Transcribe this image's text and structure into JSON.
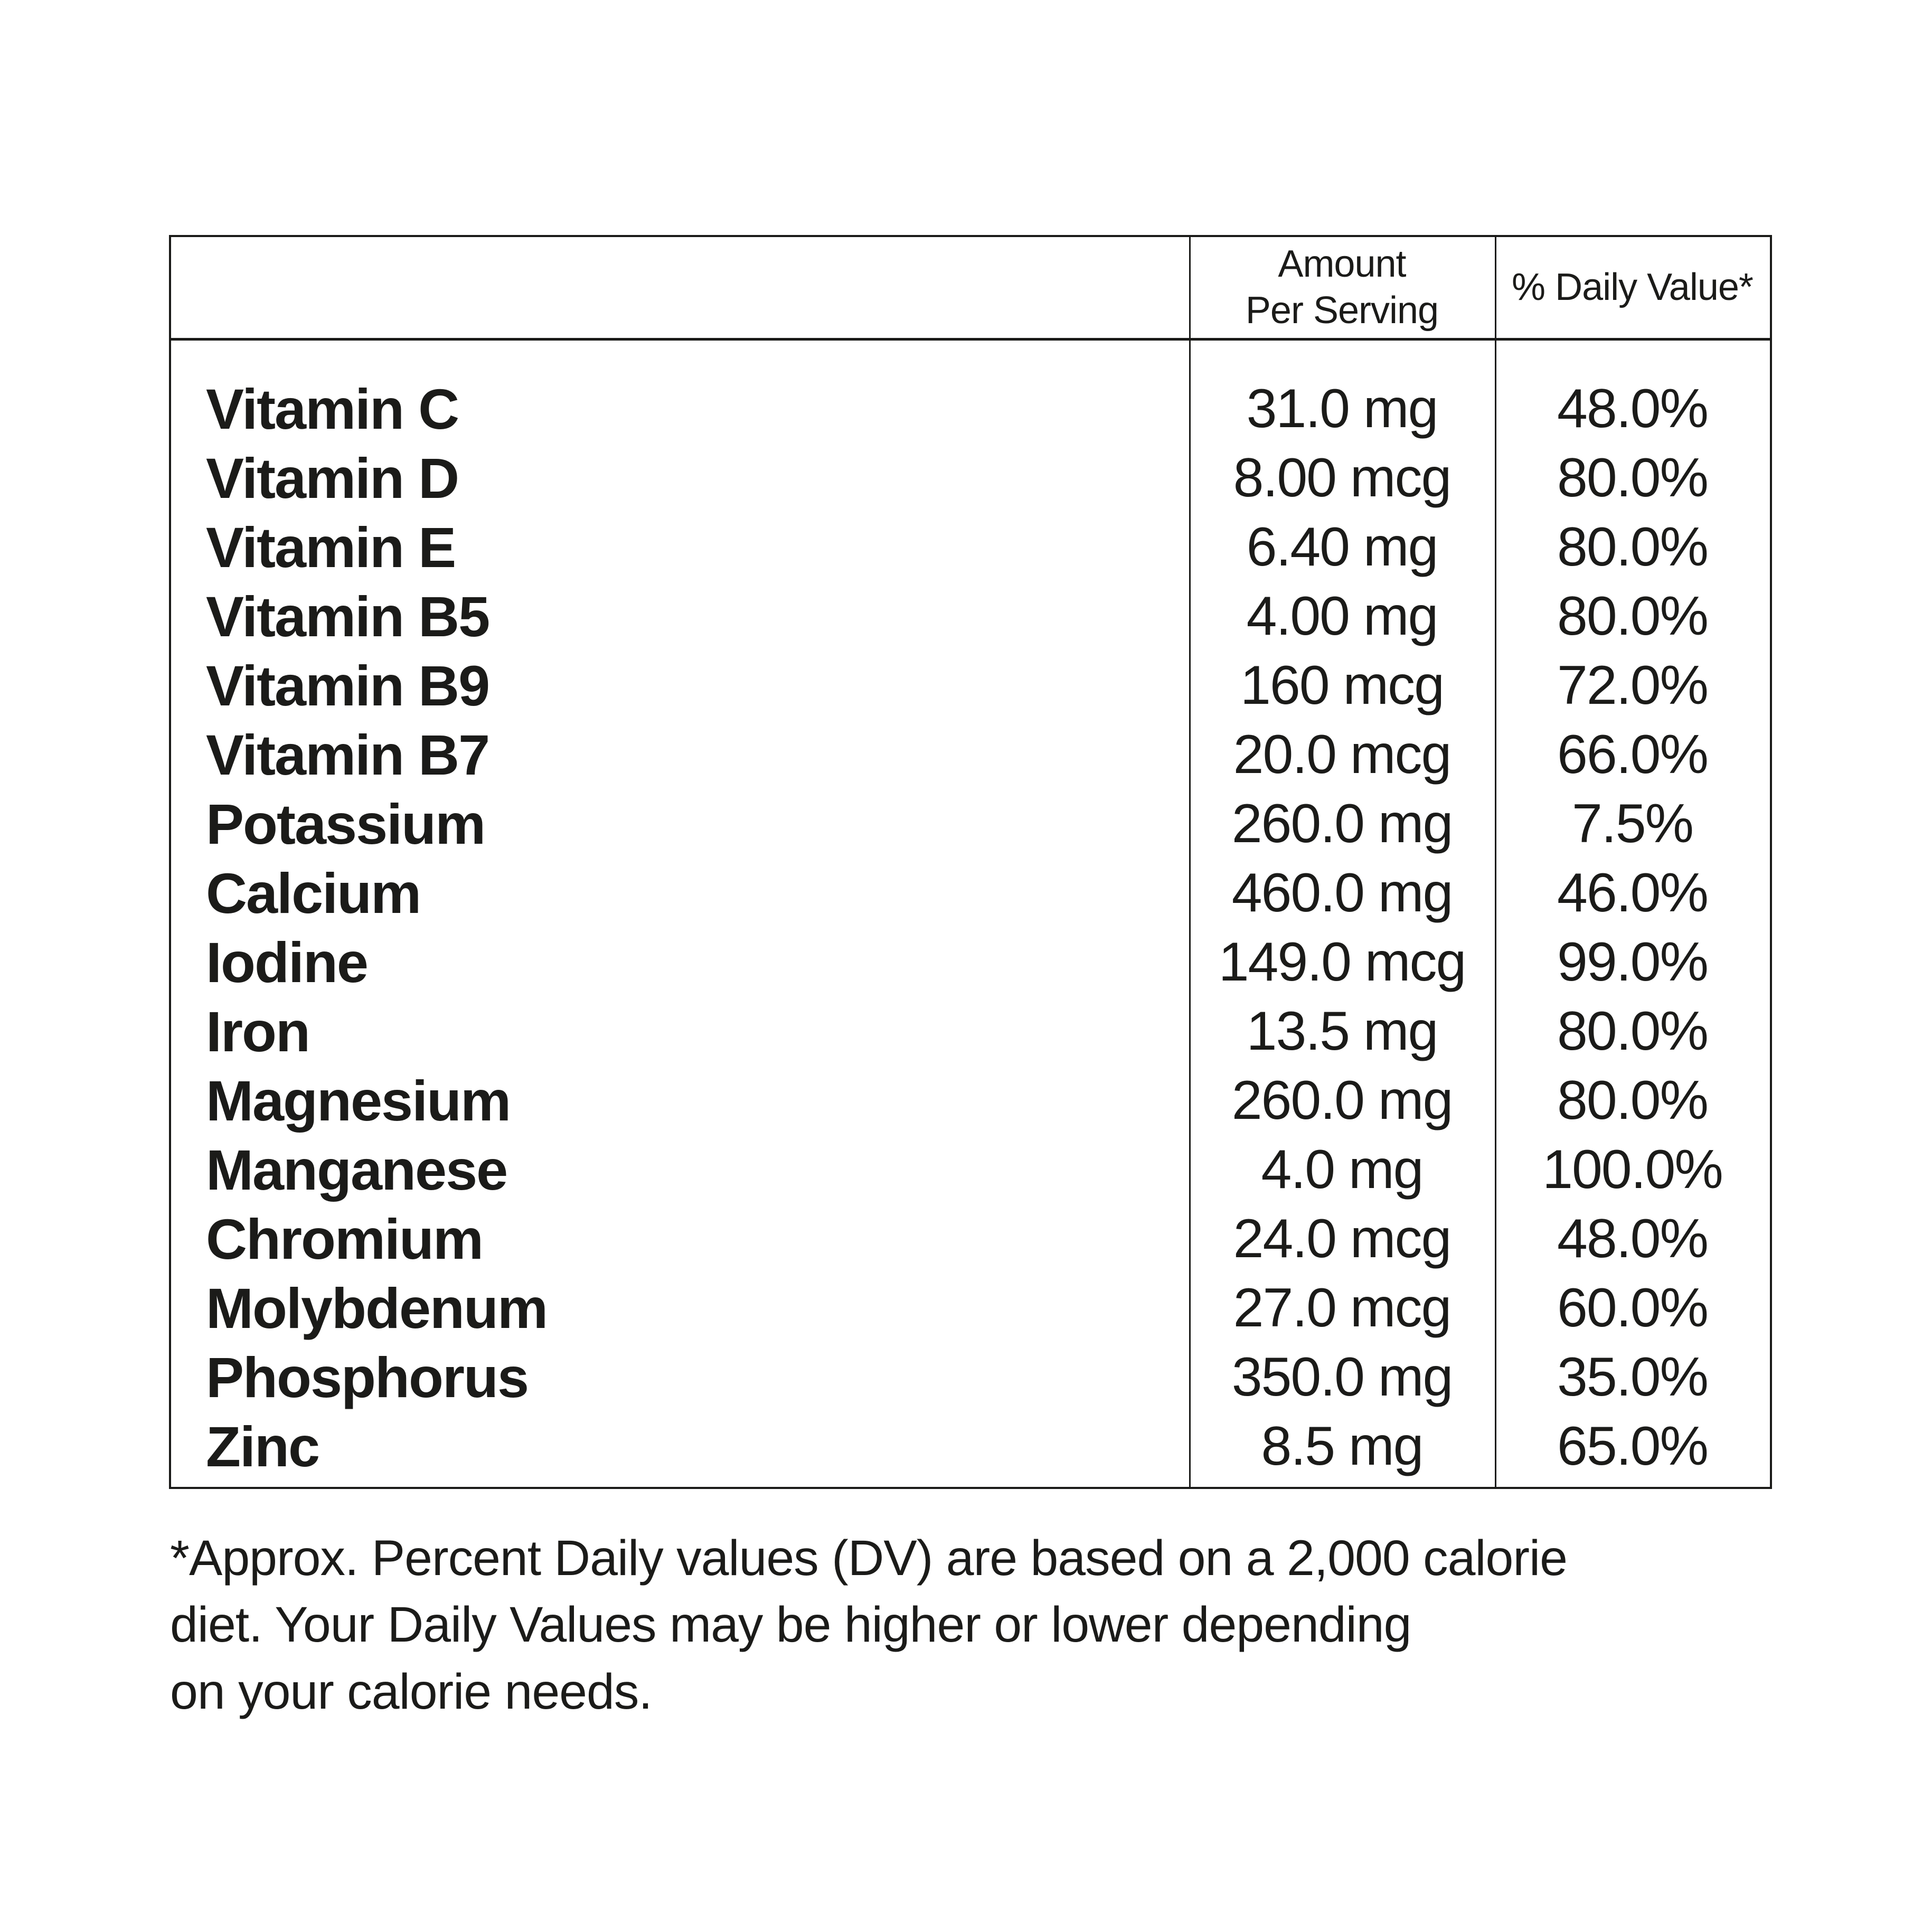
{
  "table": {
    "header": {
      "blank": "",
      "amount_line1": "Amount",
      "amount_line2": "Per Serving",
      "daily_value": "% Daily Value*"
    },
    "rows": [
      {
        "name": "Vitamin C",
        "amount": "31.0 mg",
        "dv": "48.0%"
      },
      {
        "name": "Vitamin D",
        "amount": "8.00 mcg",
        "dv": "80.0%"
      },
      {
        "name": "Vitamin E",
        "amount": "6.40 mg",
        "dv": "80.0%"
      },
      {
        "name": "Vitamin B5",
        "amount": "4.00 mg",
        "dv": "80.0%"
      },
      {
        "name": "Vitamin B9",
        "amount": "160 mcg",
        "dv": "72.0%"
      },
      {
        "name": "Vitamin B7",
        "amount": "20.0 mcg",
        "dv": "66.0%"
      },
      {
        "name": "Potassium",
        "amount": "260.0 mg",
        "dv": "7.5%"
      },
      {
        "name": "Calcium",
        "amount": "460.0 mg",
        "dv": "46.0%"
      },
      {
        "name": "Iodine",
        "amount": "149.0 mcg",
        "dv": "99.0%"
      },
      {
        "name": "Iron",
        "amount": "13.5 mg",
        "dv": "80.0%"
      },
      {
        "name": "Magnesium",
        "amount": "260.0 mg",
        "dv": "80.0%"
      },
      {
        "name": "Manganese",
        "amount": "4.0 mg",
        "dv": "100.0%"
      },
      {
        "name": "Chromium",
        "amount": "24.0 mcg",
        "dv": "48.0%"
      },
      {
        "name": "Molybdenum",
        "amount": "27.0 mcg",
        "dv": "60.0%"
      },
      {
        "name": "Phosphorus",
        "amount": "350.0 mg",
        "dv": "35.0%"
      },
      {
        "name": "Zinc",
        "amount": "8.5 mg",
        "dv": "65.0%"
      }
    ]
  },
  "footnote": {
    "lines": [
      "*Approx. Percent Daily values (DV) are based on a 2,000 calorie",
      "diet. Your Daily Values may be higher or lower depending",
      "on your calorie needs."
    ]
  }
}
